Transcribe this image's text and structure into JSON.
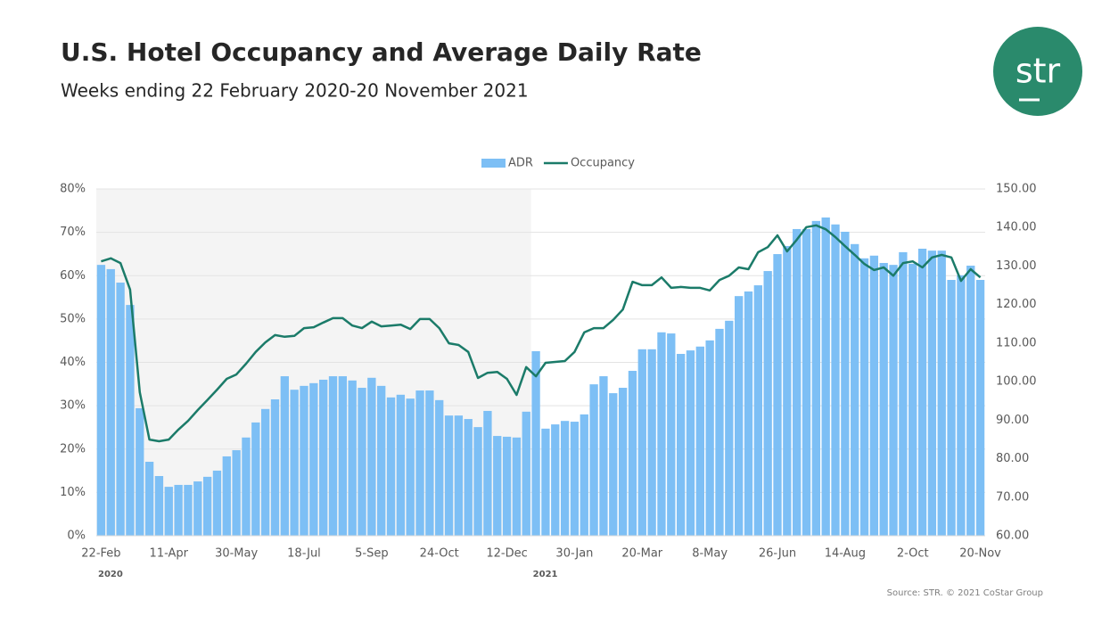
{
  "chart_data": {
    "type": "bar-line",
    "title": "U.S. Hotel Occupancy and Average Daily Rate",
    "subtitle": "Weeks ending 22 February 2020-20 November 2021",
    "logo": "str",
    "source": "Source: STR. © 2021 CoStar Group",
    "years": [
      "2020",
      "2021"
    ],
    "categories": [
      "22-Feb",
      null,
      null,
      null,
      null,
      null,
      null,
      "11-Apr",
      null,
      null,
      null,
      null,
      null,
      null,
      "30-May",
      null,
      null,
      null,
      null,
      null,
      null,
      "18-Jul",
      null,
      null,
      null,
      null,
      null,
      null,
      "5-Sep",
      null,
      null,
      null,
      null,
      null,
      null,
      "24-Oct",
      null,
      null,
      null,
      null,
      null,
      null,
      "12-Dec",
      null,
      null,
      null,
      null,
      null,
      null,
      "30-Jan",
      null,
      null,
      null,
      null,
      null,
      null,
      "20-Mar",
      null,
      null,
      null,
      null,
      null,
      null,
      "8-May",
      null,
      null,
      null,
      null,
      null,
      null,
      "26-Jun",
      null,
      null,
      null,
      null,
      null,
      null,
      "14-Aug",
      null,
      null,
      null,
      null,
      null,
      null,
      "2-Oct",
      null,
      null,
      null,
      null,
      null,
      null,
      "20-Nov"
    ],
    "series": [
      {
        "name": "ADR",
        "kind": "bar",
        "axis": "y2",
        "color": "#7dbff5",
        "values": [
          130.3,
          129.2,
          125.7,
          119.9,
          93.1,
          79.2,
          75.5,
          72.7,
          73.2,
          73.2,
          74.1,
          75.3,
          76.9,
          80.6,
          82.2,
          85.5,
          89.4,
          92.9,
          95.4,
          101.4,
          97.9,
          98.9,
          99.6,
          100.5,
          101.4,
          101.4,
          100.3,
          98.4,
          101.0,
          98.9,
          95.9,
          96.6,
          95.6,
          97.7,
          97.7,
          95.2,
          91.2,
          91.2,
          90.3,
          88.2,
          92.4,
          85.9,
          85.7,
          85.5,
          92.2,
          107.9,
          87.8,
          88.9,
          89.8,
          89.6,
          91.5,
          99.3,
          101.4,
          97.0,
          98.4,
          102.8,
          108.4,
          108.4,
          112.8,
          112.5,
          107.2,
          108.1,
          109.1,
          110.7,
          113.7,
          115.8,
          122.2,
          123.4,
          125.0,
          128.7,
          133.1,
          135.2,
          139.6,
          139.6,
          141.7,
          142.6,
          140.8,
          138.9,
          135.7,
          132.0,
          132.7,
          130.8,
          130.3,
          133.6,
          130.6,
          134.5,
          134.0,
          134.0,
          126.4,
          127.6,
          130.1,
          126.4
        ]
      },
      {
        "name": "Occupancy",
        "kind": "line",
        "axis": "y",
        "color": "#1b7b69",
        "values": [
          63.3,
          64.0,
          62.9,
          56.8,
          33.1,
          22.2,
          21.8,
          22.2,
          24.5,
          26.5,
          29.0,
          31.3,
          33.7,
          36.2,
          37.2,
          39.7,
          42.4,
          44.6,
          46.3,
          45.9,
          46.1,
          47.9,
          48.1,
          49.2,
          50.2,
          50.2,
          48.5,
          47.9,
          49.4,
          48.3,
          48.5,
          48.7,
          47.7,
          50.0,
          50.0,
          47.9,
          44.4,
          44.0,
          42.4,
          36.4,
          37.6,
          37.8,
          36.2,
          32.5,
          38.9,
          36.8,
          39.9,
          40.1,
          40.3,
          42.4,
          46.9,
          47.9,
          47.9,
          49.8,
          52.2,
          58.6,
          57.8,
          57.8,
          59.6,
          57.2,
          57.4,
          57.2,
          57.2,
          56.6,
          59.0,
          60.0,
          61.9,
          61.5,
          65.4,
          66.6,
          69.3,
          65.6,
          68.3,
          71.2,
          71.6,
          70.7,
          68.9,
          66.8,
          64.8,
          62.7,
          61.3,
          61.9,
          60.0,
          62.9,
          63.3,
          61.9,
          64.2,
          64.8,
          64.2,
          58.8,
          61.5,
          59.6
        ]
      }
    ],
    "ylim": [
      0,
      80
    ],
    "yticks": [
      {
        "value": 0,
        "label": "0%"
      },
      {
        "value": 10,
        "label": "10%"
      },
      {
        "value": 20,
        "label": "20%"
      },
      {
        "value": 30,
        "label": "30%"
      },
      {
        "value": 40,
        "label": "40%"
      },
      {
        "value": 50,
        "label": "50%"
      },
      {
        "value": 60,
        "label": "60%"
      },
      {
        "value": 70,
        "label": "70%"
      },
      {
        "value": 80,
        "label": "80%"
      }
    ],
    "y2lim": [
      60,
      150
    ],
    "y2ticks": [
      {
        "value": 60,
        "label": "60.00"
      },
      {
        "value": 70,
        "label": "70.00"
      },
      {
        "value": 80,
        "label": "80.00"
      },
      {
        "value": 90,
        "label": "90.00"
      },
      {
        "value": 100,
        "label": "100.00"
      },
      {
        "value": 110,
        "label": "110.00"
      },
      {
        "value": 120,
        "label": "120.00"
      },
      {
        "value": 130,
        "label": "130.00"
      },
      {
        "value": 140,
        "label": "140.00"
      },
      {
        "value": 150,
        "label": "150.00"
      }
    ],
    "grid": true
  }
}
